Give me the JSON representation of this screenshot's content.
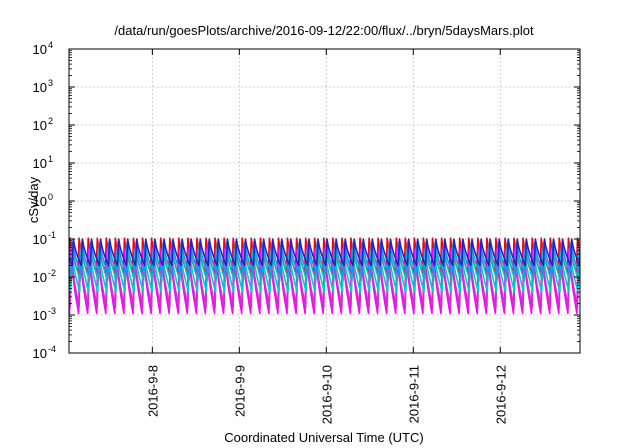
{
  "chart_data": {
    "type": "line",
    "title": "/data/run/goesPlots/archive/2016-09-12/22:00/flux/../bryn/5daysMars.plot",
    "xlabel": "Coordinated Universal Time (UTC)",
    "ylabel": "cSv/day",
    "yscale": "log",
    "ylim": [
      0.0001,
      10000
    ],
    "y_ticks": [
      {
        "base": "10",
        "exp": "4"
      },
      {
        "base": "10",
        "exp": "3"
      },
      {
        "base": "10",
        "exp": "2"
      },
      {
        "base": "10",
        "exp": "1"
      },
      {
        "base": "10",
        "exp": "0"
      },
      {
        "base": "10",
        "exp": "-1"
      },
      {
        "base": "10",
        "exp": "-2"
      },
      {
        "base": "10",
        "exp": "-3"
      },
      {
        "base": "10",
        "exp": "-4"
      }
    ],
    "xlim": [
      "2016-09-07T01:00",
      "2016-09-12T22:00"
    ],
    "x_ticks": [
      "2016-9-8",
      "2016-9-9",
      "2016-9-10",
      "2016-9-11",
      "2016-9-12"
    ],
    "x_tick_dates": [
      "2016-09-08",
      "2016-09-09",
      "2016-09-10",
      "2016-09-11",
      "2016-09-12"
    ],
    "grid": true,
    "period_hours": 2.5,
    "series": [
      {
        "color": "#ff0000",
        "peak": 0.105,
        "trough": 0.013
      },
      {
        "color": "#ff00ff",
        "peak": 0.055,
        "trough": 0.0011
      },
      {
        "color": "#cc33cc",
        "peak": 0.045,
        "trough": 0.0016
      },
      {
        "color": "#00cccc",
        "peak": 0.05,
        "trough": 0.004
      },
      {
        "color": "#20b2aa",
        "peak": 0.07,
        "trough": 0.008
      },
      {
        "color": "#1e90ff",
        "peak": 0.085,
        "trough": 0.012
      },
      {
        "color": "#2222cc",
        "peak": 0.1,
        "trough": 0.02
      }
    ]
  }
}
